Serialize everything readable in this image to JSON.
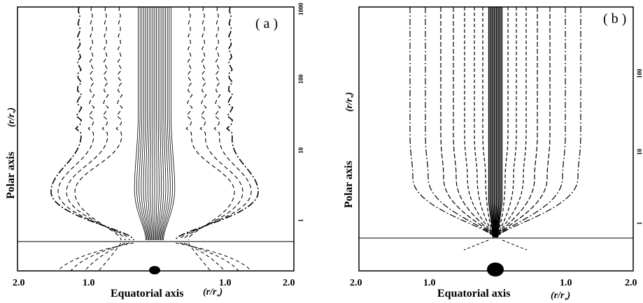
{
  "figure": {
    "panels": [
      {
        "label": "( a )",
        "ylabel": "Polar axis",
        "ylabel_unit": "(r/r",
        "ylabel_unit_sub": "*",
        "ylabel_unit_close": ")",
        "xlabel": "Equatorial axis",
        "xlabel_unit": "(r/r",
        "xlabel_unit_sub": "*",
        "xlabel_unit_close": ")",
        "x_ticks": [
          "2.0",
          "1.0",
          "1.0",
          "2.0"
        ],
        "y_ticks": [
          "1",
          "10",
          "100",
          "1000"
        ]
      },
      {
        "label": "( b )",
        "ylabel": "Polar axis",
        "ylabel_unit": "(r/r",
        "ylabel_unit_sub": "*",
        "ylabel_unit_close": ")",
        "xlabel": "Equatorial axis",
        "xlabel_unit": "(r/r",
        "xlabel_unit_sub": "*",
        "xlabel_unit_close": ")",
        "x_ticks": [
          "2.0",
          "1.0",
          "1.0",
          "2.0"
        ],
        "y_ticks": [
          "1",
          "10",
          "100"
        ]
      }
    ],
    "colors": {
      "ink": "#000000",
      "background": "#ffffff"
    }
  }
}
